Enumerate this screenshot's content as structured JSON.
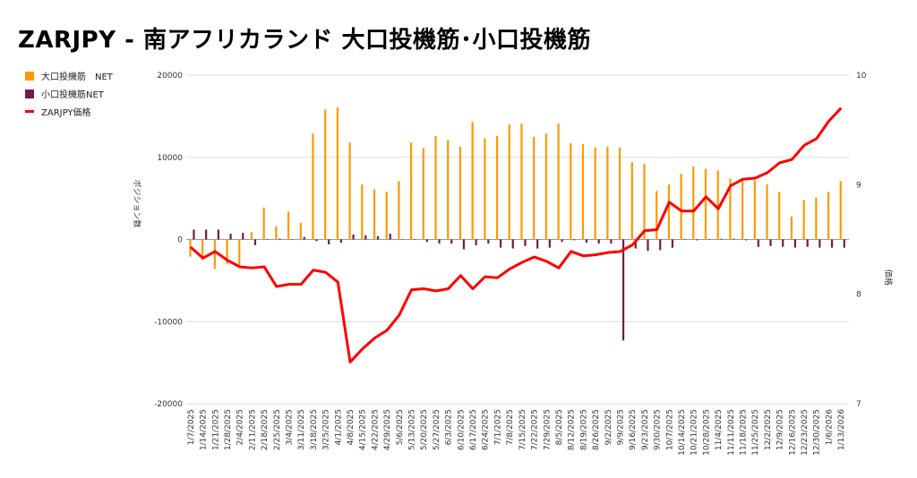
{
  "chart_data": {
    "type": "bar+line",
    "title": "ZARJPY - 南アフリカランド 大口投機筋･小口投機筋",
    "ylabel": "ポジション数",
    "y2label": "価格",
    "ylim": [
      -20000,
      20000
    ],
    "y2lim": [
      7,
      10
    ],
    "yticks": [
      "20000",
      "10000",
      "0",
      "-10000",
      "-20000"
    ],
    "y2ticks": [
      "10",
      "9",
      "8",
      "7"
    ],
    "grid": true,
    "legend_position": "top-left",
    "categories": [
      "1/7/2025",
      "1/14/2025",
      "1/21/2025",
      "1/28/2025",
      "2/4/2025",
      "2/11/2025",
      "2/18/2025",
      "2/25/2025",
      "3/4/2025",
      "3/11/2025",
      "3/18/2025",
      "3/25/2025",
      "4/1/2025",
      "4/8/2025",
      "4/15/2025",
      "4/22/2025",
      "4/29/2025",
      "5/6/2025",
      "5/13/2025",
      "5/20/2025",
      "5/27/2025",
      "6/3/2025",
      "6/10/2025",
      "6/17/2025",
      "6/24/2025",
      "7/1/2025",
      "7/8/2025",
      "7/15/2025",
      "7/22/2025",
      "7/29/2025",
      "8/5/2025",
      "8/12/2025",
      "8/19/2025",
      "8/26/2025",
      "9/2/2025",
      "9/9/2025",
      "9/16/2025",
      "9/23/2025",
      "9/30/2025",
      "10/7/2025",
      "10/14/2025",
      "10/21/2025",
      "10/28/2025",
      "11/4/2025",
      "11/11/2025",
      "11/18/2025",
      "11/25/2025",
      "12/2/2025",
      "12/9/2025",
      "12/16/2025",
      "12/23/2025",
      "12/30/2025",
      "1/6/2026",
      "1/13/2026"
    ],
    "series": [
      {
        "name": "大口投機筋　NET",
        "type": "bar",
        "axis": "left",
        "color": "#ff9900",
        "values": [
          -2100,
          -2500,
          -3600,
          -3000,
          -3300,
          900,
          3900,
          1600,
          3400,
          2000,
          12900,
          15800,
          16100,
          11800,
          6700,
          6100,
          5800,
          7100,
          11800,
          11100,
          12600,
          12100,
          11300,
          14300,
          12300,
          12600,
          14000,
          14100,
          12500,
          12900,
          14100,
          11700,
          11600,
          11200,
          11300,
          11200,
          9400,
          9200,
          5900,
          6700,
          8000,
          8900,
          8600,
          8400,
          7400,
          7200,
          7200,
          6700,
          5800,
          2800,
          4800,
          5100,
          5800,
          7100
        ]
      },
      {
        "name": "小口投機筋NET",
        "type": "bar",
        "axis": "left",
        "color": "#741b47",
        "values": [
          1200,
          1200,
          1200,
          700,
          800,
          -700,
          0,
          100,
          0,
          300,
          -200,
          -600,
          -400,
          600,
          500,
          400,
          700,
          0,
          0,
          -300,
          -500,
          -500,
          -1200,
          -700,
          -500,
          -1000,
          -1100,
          -800,
          -1100,
          -1000,
          -300,
          -100,
          -400,
          -500,
          -500,
          -12300,
          -1100,
          -1400,
          -1300,
          -1000,
          0,
          -100,
          0,
          100,
          100,
          -100,
          -900,
          -800,
          -900,
          -1000,
          -900,
          -1000,
          -1000,
          -1000
        ]
      },
      {
        "name": "ZARJPY価格",
        "type": "line",
        "axis": "right",
        "color": "#ff0000",
        "values": [
          8.43,
          8.33,
          8.39,
          8.31,
          8.25,
          8.24,
          8.25,
          8.07,
          8.09,
          8.09,
          8.22,
          8.2,
          8.11,
          7.38,
          7.5,
          7.6,
          7.67,
          7.81,
          8.04,
          8.05,
          8.03,
          8.05,
          8.17,
          8.05,
          8.16,
          8.15,
          8.23,
          8.29,
          8.34,
          8.3,
          8.24,
          8.39,
          8.35,
          8.36,
          8.38,
          8.39,
          8.45,
          8.58,
          8.59,
          8.84,
          8.76,
          8.76,
          8.89,
          8.78,
          8.99,
          9.05,
          9.06,
          9.11,
          9.2,
          9.23,
          9.36,
          9.42,
          9.58,
          9.7
        ]
      }
    ]
  }
}
